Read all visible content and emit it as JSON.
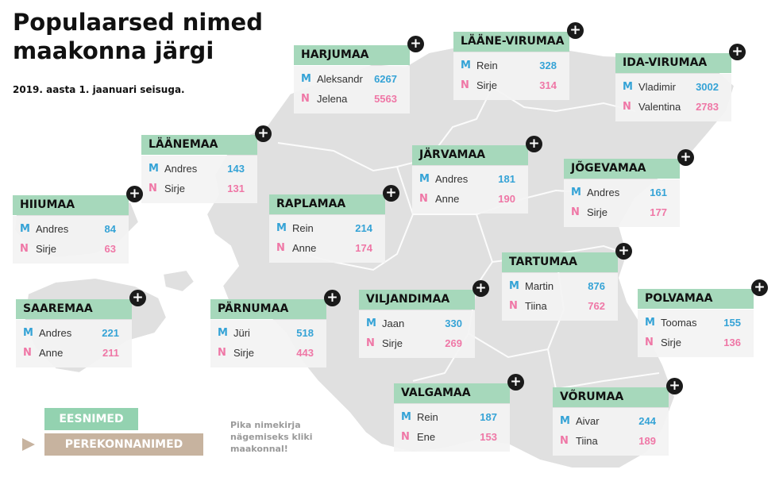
{
  "title": "Populaarsed nimed maakonna järgi",
  "subtitle": "2019. aasta 1. jaanuari seisuga.",
  "gender_labels": {
    "male": "M",
    "female": "N"
  },
  "plus_symbol": "+",
  "colors": {
    "male": "#35a3d6",
    "female": "#ef77a6",
    "header": "#a6d8bb",
    "map": "#e0e0e0"
  },
  "counties": [
    {
      "name": "HARJUMAA",
      "male": {
        "name": "Aleksandr",
        "count": "6267"
      },
      "female": {
        "name": "Jelena",
        "count": "5563"
      }
    },
    {
      "name": "LÄÄNE-VIRUMAA",
      "male": {
        "name": "Rein",
        "count": "328"
      },
      "female": {
        "name": "Sirje",
        "count": "314"
      }
    },
    {
      "name": "IDA-VIRUMAA",
      "male": {
        "name": "Vladimir",
        "count": "3002"
      },
      "female": {
        "name": "Valentina",
        "count": "2783"
      }
    },
    {
      "name": "LÄÄNEMAA",
      "male": {
        "name": "Andres",
        "count": "143"
      },
      "female": {
        "name": "Sirje",
        "count": "131"
      }
    },
    {
      "name": "JÄRVAMAA",
      "male": {
        "name": "Andres",
        "count": "181"
      },
      "female": {
        "name": "Anne",
        "count": "190"
      }
    },
    {
      "name": "JÕGEVAMAA",
      "male": {
        "name": "Andres",
        "count": "161"
      },
      "female": {
        "name": "Sirje",
        "count": "177"
      }
    },
    {
      "name": "HIIUMAA",
      "male": {
        "name": "Andres",
        "count": "84"
      },
      "female": {
        "name": "Sirje",
        "count": "63"
      }
    },
    {
      "name": "RAPLAMAA",
      "male": {
        "name": "Rein",
        "count": "214"
      },
      "female": {
        "name": "Anne",
        "count": "174"
      }
    },
    {
      "name": "TARTUMAA",
      "male": {
        "name": "Martin",
        "count": "876"
      },
      "female": {
        "name": "Tiina",
        "count": "762"
      }
    },
    {
      "name": "SAAREMAA",
      "male": {
        "name": "Andres",
        "count": "221"
      },
      "female": {
        "name": "Anne",
        "count": "211"
      }
    },
    {
      "name": "PÄRNUMAA",
      "male": {
        "name": "Jüri",
        "count": "518"
      },
      "female": {
        "name": "Sirje",
        "count": "443"
      }
    },
    {
      "name": "VILJANDIMAA",
      "male": {
        "name": "Jaan",
        "count": "330"
      },
      "female": {
        "name": "Sirje",
        "count": "269"
      }
    },
    {
      "name": "POLVAMAA",
      "male": {
        "name": "Toomas",
        "count": "155"
      },
      "female": {
        "name": "Sirje",
        "count": "136"
      }
    },
    {
      "name": "VALGAMAA",
      "male": {
        "name": "Rein",
        "count": "187"
      },
      "female": {
        "name": "Ene",
        "count": "153"
      }
    },
    {
      "name": "VÕRUMAA",
      "male": {
        "name": "Aivar",
        "count": "244"
      },
      "female": {
        "name": "Tiina",
        "count": "189"
      }
    }
  ],
  "buttons": {
    "first_names": "EESNIMED",
    "last_names": "PEREKONNANIMED"
  },
  "hint": "Pika nimekirja nägemiseks kliki maakonnal!"
}
